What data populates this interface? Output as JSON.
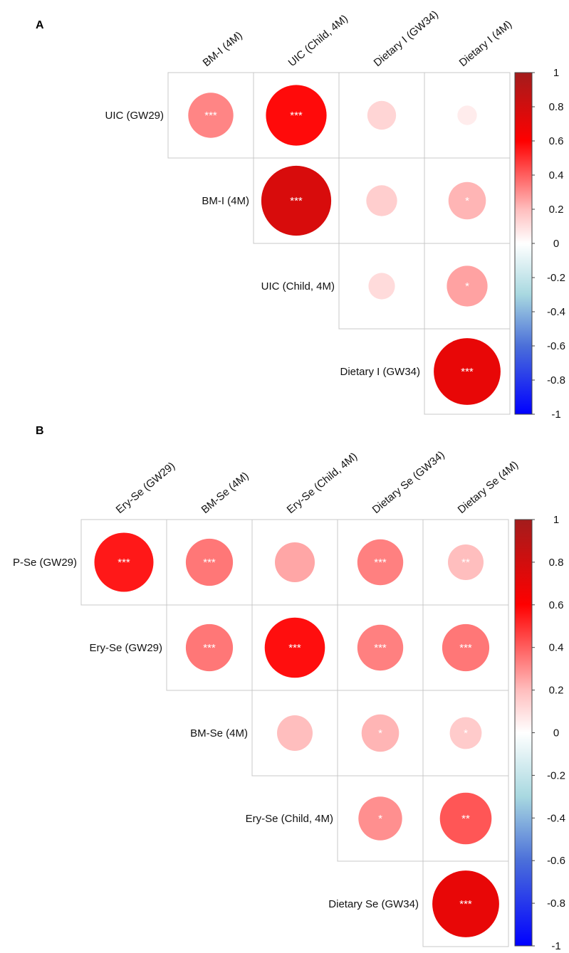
{
  "chart_data": [
    {
      "type": "heatmap",
      "panel": "A",
      "title": "",
      "columns": [
        "BM-I (4M)",
        "UIC (Child, 4M)",
        "Dietary I (GW34)",
        "Dietary I (4M)"
      ],
      "rows": [
        "UIC (GW29)",
        "BM-I (4M)",
        "UIC (Child, 4M)",
        "Dietary I (GW34)"
      ],
      "cells": [
        {
          "row": 0,
          "col": 0,
          "r": 0.32,
          "sig": "***"
        },
        {
          "row": 0,
          "col": 1,
          "r": 0.58,
          "sig": "***"
        },
        {
          "row": 0,
          "col": 2,
          "r": 0.13,
          "sig": ""
        },
        {
          "row": 0,
          "col": 3,
          "r": 0.06,
          "sig": ""
        },
        {
          "row": 1,
          "col": 1,
          "r": 0.77,
          "sig": "***"
        },
        {
          "row": 1,
          "col": 2,
          "r": 0.15,
          "sig": ""
        },
        {
          "row": 1,
          "col": 3,
          "r": 0.22,
          "sig": "*"
        },
        {
          "row": 2,
          "col": 2,
          "r": 0.11,
          "sig": ""
        },
        {
          "row": 2,
          "col": 3,
          "r": 0.26,
          "sig": "*"
        },
        {
          "row": 3,
          "col": 3,
          "r": 0.7,
          "sig": "***"
        }
      ],
      "colorbar": {
        "range": [
          -1,
          1
        ],
        "ticks": [
          "1",
          "0.8",
          "0.6",
          "0.4",
          "0.2",
          "0",
          "-0.2",
          "-0.4",
          "-0.6",
          "-0.8",
          "-1"
        ],
        "colors": [
          "#053061",
          "#2166AC",
          "#4393C3",
          "#92C5DE",
          "#D1E5F0",
          "#FFFFFF",
          "#FDDBC7",
          "#F4A582",
          "#D6604D",
          "#B2182B",
          "#67001F"
        ]
      }
    },
    {
      "type": "heatmap",
      "panel": "B",
      "title": "",
      "columns": [
        "Ery-Se (GW29)",
        "BM-Se (4M)",
        "Ery-Se (Child, 4M)",
        "Dietary Se (GW34)",
        "Dietary Se (4M)"
      ],
      "rows": [
        "P-Se (GW29)",
        "Ery-Se (GW29)",
        "BM-Se (4M)",
        "Ery-Se (Child, 4M)",
        "Dietary Se (GW34)"
      ],
      "cells": [
        {
          "row": 0,
          "col": 0,
          "r": 0.55,
          "sig": "***"
        },
        {
          "row": 0,
          "col": 1,
          "r": 0.35,
          "sig": "***"
        },
        {
          "row": 0,
          "col": 2,
          "r": 0.25,
          "sig": ""
        },
        {
          "row": 0,
          "col": 3,
          "r": 0.33,
          "sig": "***"
        },
        {
          "row": 0,
          "col": 4,
          "r": 0.2,
          "sig": "**"
        },
        {
          "row": 1,
          "col": 1,
          "r": 0.35,
          "sig": "***"
        },
        {
          "row": 1,
          "col": 2,
          "r": 0.57,
          "sig": "***"
        },
        {
          "row": 1,
          "col": 3,
          "r": 0.33,
          "sig": "***"
        },
        {
          "row": 1,
          "col": 4,
          "r": 0.35,
          "sig": "***"
        },
        {
          "row": 2,
          "col": 2,
          "r": 0.2,
          "sig": ""
        },
        {
          "row": 2,
          "col": 3,
          "r": 0.22,
          "sig": "*"
        },
        {
          "row": 2,
          "col": 4,
          "r": 0.16,
          "sig": "*"
        },
        {
          "row": 3,
          "col": 3,
          "r": 0.3,
          "sig": "*"
        },
        {
          "row": 3,
          "col": 4,
          "r": 0.42,
          "sig": "**"
        },
        {
          "row": 4,
          "col": 4,
          "r": 0.7,
          "sig": "***"
        }
      ],
      "colorbar": {
        "range": [
          -1,
          1
        ],
        "ticks": [
          "1",
          "0.8",
          "0.6",
          "0.4",
          "0.2",
          "0",
          "-0.2",
          "-0.4",
          "-0.6",
          "-0.8",
          "-1"
        ],
        "colors": [
          "#053061",
          "#2166AC",
          "#4393C3",
          "#92C5DE",
          "#D1E5F0",
          "#FFFFFF",
          "#FDDBC7",
          "#F4A582",
          "#D6604D",
          "#B2182B",
          "#67001F"
        ]
      }
    }
  ]
}
